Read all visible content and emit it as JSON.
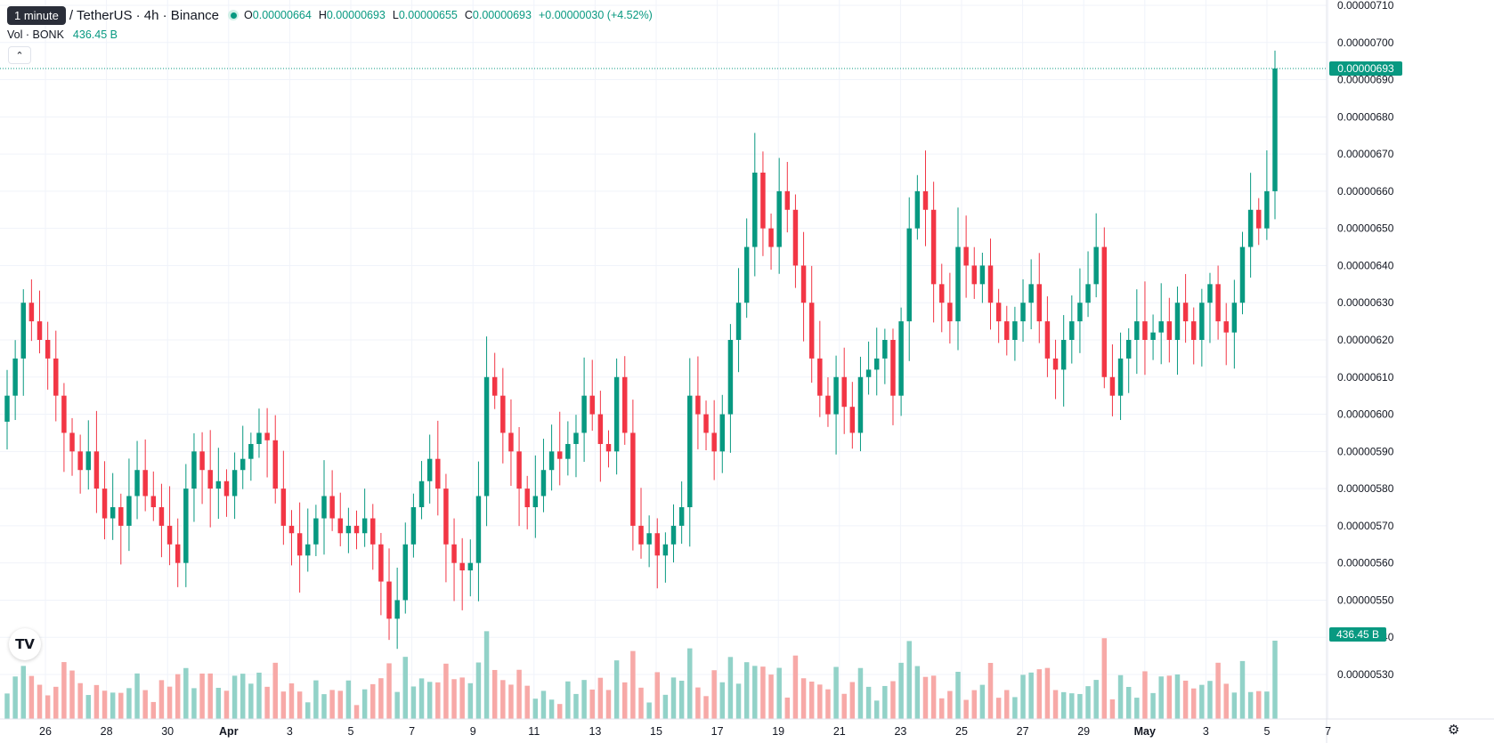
{
  "header": {
    "tooltip": "1 minute",
    "symbol": "/ TetherUS · 4h · Binance",
    "ohlc": [
      {
        "k": "O",
        "v": "0.00000664"
      },
      {
        "k": "H",
        "v": "0.00000693"
      },
      {
        "k": "L",
        "v": "0.00000655"
      },
      {
        "k": "C",
        "v": "0.00000693"
      }
    ],
    "change": "+0.00000030 (+4.52%)"
  },
  "volume": {
    "label": "Vol · BONK",
    "value": "436.45 B"
  },
  "icons": {
    "collapse": "chevron-up-icon",
    "logo": "tradingview-logo-icon",
    "settings": "gear-icon"
  },
  "colors": {
    "up": "#089981",
    "down": "#f23645",
    "up_vol": "#92d2c8",
    "down_vol": "#f7a9a7",
    "grid": "#f0f3fa",
    "price_line": "#089981"
  },
  "chart_data": {
    "type": "candlestick",
    "price_axis": {
      "min": 5.25e-06,
      "max": 7.12e-06,
      "ticks": [
        "0.00000530",
        "0.00000540",
        "0.00000550",
        "0.00000560",
        "0.00000570",
        "0.00000580",
        "0.00000590",
        "0.00000600",
        "0.00000610",
        "0.00000620",
        "0.00000630",
        "0.00000640",
        "0.00000650",
        "0.00000660",
        "0.00000670",
        "0.00000680",
        "0.00000690",
        "0.00000700",
        "0.00000710"
      ]
    },
    "time_axis": {
      "ticks": [
        "26",
        "28",
        "30",
        "Apr",
        "3",
        "5",
        "7",
        "9",
        "11",
        "13",
        "15",
        "17",
        "19",
        "21",
        "23",
        "25",
        "27",
        "29",
        "May",
        "3",
        "5",
        "7"
      ]
    },
    "last_price": "0.00000693",
    "last_volume": "436.45 B",
    "closes": [
      6.05,
      6.15,
      6.3,
      6.25,
      6.2,
      6.15,
      6.05,
      5.95,
      5.9,
      5.85,
      5.9,
      5.8,
      5.72,
      5.75,
      5.7,
      5.78,
      5.85,
      5.78,
      5.75,
      5.7,
      5.65,
      5.6,
      5.8,
      5.9,
      5.85,
      5.8,
      5.82,
      5.78,
      5.85,
      5.88,
      5.92,
      5.95,
      5.93,
      5.8,
      5.7,
      5.68,
      5.62,
      5.65,
      5.72,
      5.78,
      5.72,
      5.68,
      5.7,
      5.68,
      5.72,
      5.65,
      5.55,
      5.45,
      5.5,
      5.65,
      5.75,
      5.82,
      5.88,
      5.8,
      5.65,
      5.6,
      5.58,
      5.6,
      5.78,
      6.1,
      6.05,
      5.95,
      5.9,
      5.8,
      5.75,
      5.78,
      5.85,
      5.9,
      5.88,
      5.92,
      5.95,
      6.05,
      6.0,
      5.92,
      5.9,
      6.1,
      5.95,
      5.7,
      5.65,
      5.68,
      5.62,
      5.65,
      5.7,
      5.75,
      6.05,
      6.0,
      5.95,
      5.9,
      6.0,
      6.2,
      6.3,
      6.45,
      6.65,
      6.5,
      6.45,
      6.6,
      6.55,
      6.4,
      6.3,
      6.15,
      6.05,
      6.0,
      6.1,
      6.02,
      5.95,
      6.1,
      6.12,
      6.15,
      6.2,
      6.05,
      6.25,
      6.5,
      6.6,
      6.55,
      6.35,
      6.3,
      6.25,
      6.45,
      6.4,
      6.35,
      6.4,
      6.3,
      6.25,
      6.2,
      6.25,
      6.3,
      6.35,
      6.25,
      6.15,
      6.12,
      6.2,
      6.25,
      6.3,
      6.35,
      6.45,
      6.1,
      6.05,
      6.15,
      6.2,
      6.25,
      6.2,
      6.22,
      6.25,
      6.2,
      6.3,
      6.25,
      6.2,
      6.3,
      6.35,
      6.25,
      6.22,
      6.3,
      6.45,
      6.55,
      6.5,
      6.6,
      6.93
    ]
  }
}
